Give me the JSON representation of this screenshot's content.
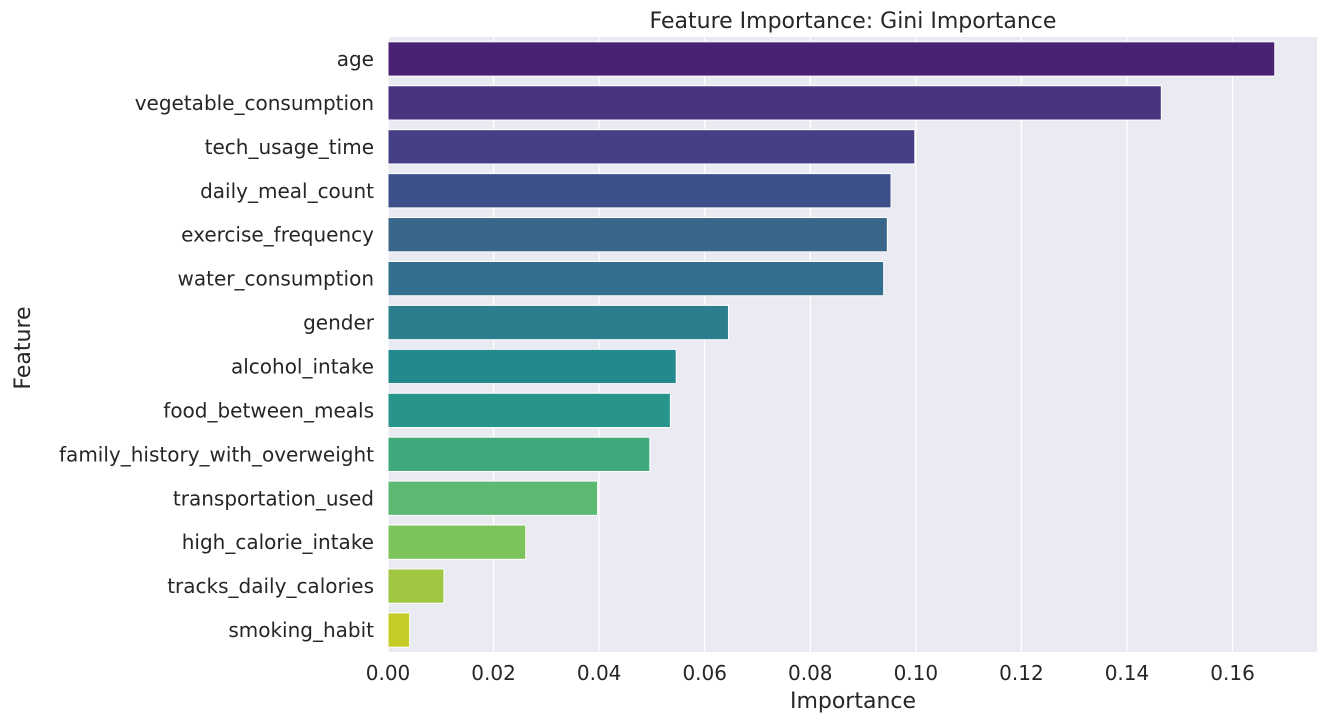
{
  "chart_data": {
    "type": "bar",
    "orientation": "horizontal",
    "title": "Feature Importance: Gini Importance",
    "xlabel": "Importance",
    "ylabel": "Feature",
    "xlim": [
      0,
      0.176
    ],
    "xticks": [
      0.0,
      0.02,
      0.04,
      0.06,
      0.08,
      0.1,
      0.12,
      0.14,
      0.16
    ],
    "xtick_labels": [
      "0.00",
      "0.02",
      "0.04",
      "0.06",
      "0.08",
      "0.10",
      "0.12",
      "0.14",
      "0.16"
    ],
    "grid": true,
    "categories": [
      "age",
      "vegetable_consumption",
      "tech_usage_time",
      "daily_meal_count",
      "exercise_frequency",
      "water_consumption",
      "gender",
      "alcohol_intake",
      "food_between_meals",
      "family_history_with_overweight",
      "transportation_used",
      "high_calorie_intake",
      "tracks_daily_calories",
      "smoking_habit"
    ],
    "values": [
      0.168,
      0.1465,
      0.0998,
      0.0953,
      0.0946,
      0.0939,
      0.0645,
      0.0546,
      0.0535,
      0.0496,
      0.0397,
      0.0261,
      0.0106,
      0.0041
    ],
    "colors": [
      "#482173",
      "#47337e",
      "#453f85",
      "#3e5089",
      "#3b668b",
      "#336e8e",
      "#2b7e8e",
      "#23898e",
      "#27958a",
      "#40a97c",
      "#5cb972",
      "#7cc35b",
      "#a0c742",
      "#c4cd28"
    ],
    "style": {
      "plot_background": "#eaeaf2",
      "grid_color": "#ffffff",
      "text_color": "#262626"
    }
  }
}
